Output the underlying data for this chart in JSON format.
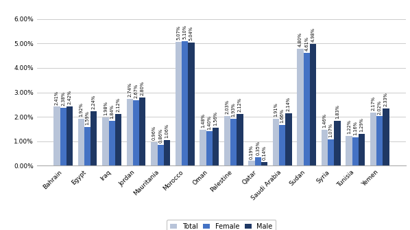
{
  "categories": [
    "Bahrain",
    "Egypt",
    "Iraq",
    "Jordan",
    "Mauritania",
    "Morocco",
    "Oman",
    "Palestine",
    "Qatar",
    "Saudi Arabia",
    "Sudan",
    "Syria",
    "Tunisia",
    "Yemen"
  ],
  "total": [
    2.41,
    1.92,
    1.98,
    2.74,
    0.96,
    5.07,
    1.48,
    2.03,
    0.19,
    1.91,
    4.8,
    1.46,
    1.22,
    2.17
  ],
  "female": [
    2.38,
    1.59,
    1.84,
    2.67,
    0.86,
    5.1,
    1.4,
    1.93,
    0.35,
    1.66,
    4.61,
    1.07,
    1.16,
    2.02
  ],
  "male": [
    2.42,
    2.24,
    2.12,
    2.8,
    1.06,
    5.04,
    1.56,
    2.12,
    0.14,
    2.14,
    4.98,
    1.83,
    1.29,
    2.33
  ],
  "color_total": "#b8c4d9",
  "color_female": "#4472c4",
  "color_male": "#1f3864",
  "legend_labels": [
    "Total",
    "Female",
    "Male"
  ],
  "ylim_max": 6.5,
  "yticks": [
    0.0,
    1.0,
    2.0,
    3.0,
    4.0,
    5.0,
    6.0
  ],
  "ytick_labels": [
    "0.00%",
    "1.00%",
    "2.00%",
    "3.00%",
    "4.00%",
    "5.00%",
    "6.00%"
  ],
  "label_fontsize": 4.8,
  "axis_label_fontsize": 6.5,
  "legend_fontsize": 7,
  "background_color": "#ffffff",
  "grid_color": "#cccccc",
  "bar_width": 0.26
}
